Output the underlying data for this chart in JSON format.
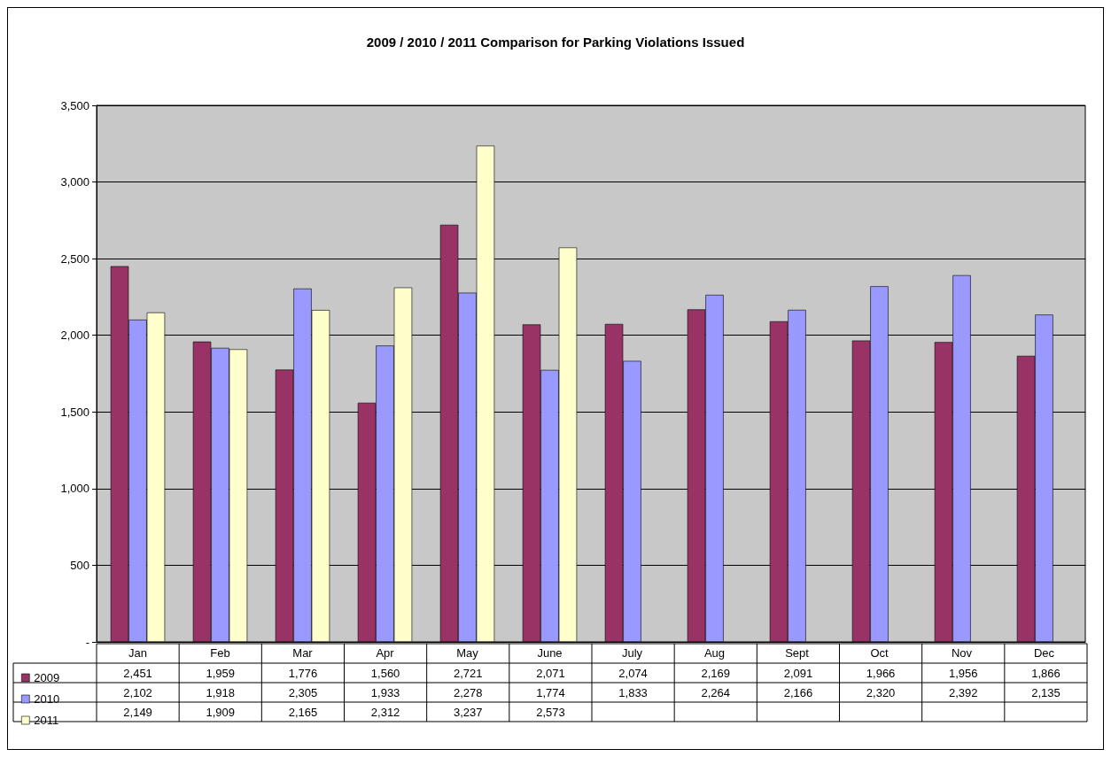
{
  "chart_data": {
    "type": "bar",
    "title": "2009 / 2010 / 2011 Comparison for Parking Violations Issued",
    "categories": [
      "Jan",
      "Feb",
      "Mar",
      "Apr",
      "May",
      "June",
      "July",
      "Aug",
      "Sept",
      "Oct",
      "Nov",
      "Dec"
    ],
    "series": [
      {
        "name": "2009",
        "color": "#993366",
        "values": [
          2451,
          1959,
          1776,
          1560,
          2721,
          2071,
          2074,
          2169,
          2091,
          1966,
          1956,
          1866
        ],
        "value_labels": [
          "2,451",
          "1,959",
          "1,776",
          "1,560",
          "2,721",
          "2,071",
          "2,074",
          "2,169",
          "2,091",
          "1,966",
          "1,956",
          "1,866"
        ]
      },
      {
        "name": "2010",
        "color": "#9999ff",
        "values": [
          2102,
          1918,
          2305,
          1933,
          2278,
          1774,
          1833,
          2264,
          2166,
          2320,
          2392,
          2135
        ],
        "value_labels": [
          "2,102",
          "1,918",
          "2,305",
          "1,933",
          "2,278",
          "1,774",
          "1,833",
          "2,264",
          "2,166",
          "2,320",
          "2,392",
          "2,135"
        ]
      },
      {
        "name": "2011",
        "color": "#ffffcc",
        "values": [
          2149,
          1909,
          2165,
          2312,
          3237,
          2573,
          null,
          null,
          null,
          null,
          null,
          null
        ],
        "value_labels": [
          "2,149",
          "1,909",
          "2,165",
          "2,312",
          "3,237",
          "2,573",
          null,
          null,
          null,
          null,
          null,
          null
        ]
      }
    ],
    "ylim": [
      0,
      3500
    ],
    "yticks": [
      {
        "value": 0,
        "label": "-"
      },
      500,
      {
        "value": 1000,
        "label": "1,000"
      },
      {
        "value": 1500,
        "label": "1,500"
      },
      {
        "value": 2000,
        "label": "2,000"
      },
      {
        "value": 2500,
        "label": "2,500"
      },
      {
        "value": 3000,
        "label": "3,000"
      },
      {
        "value": 3500,
        "label": "3,500"
      }
    ],
    "grid": true,
    "legend": "bottom"
  }
}
